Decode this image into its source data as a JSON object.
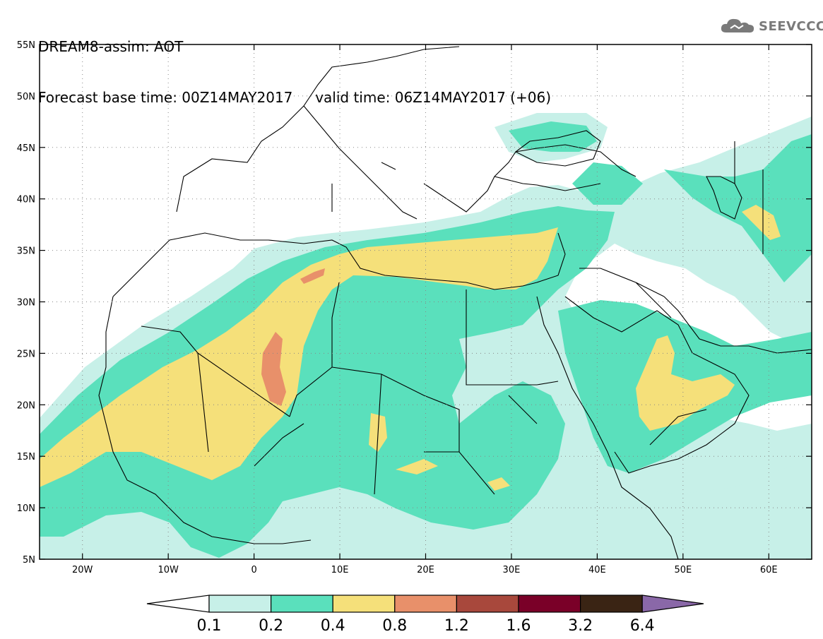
{
  "title": {
    "line1": "DREAM8-assim: AOT",
    "line2": "Forecast base time: 00Z14MAY2017     valid time: 06Z14MAY2017 (+06)"
  },
  "logo": {
    "text": "SEEVCCC",
    "icon": "cloud-icon",
    "color": "#7a7a7a"
  },
  "map": {
    "lon_range": [
      -25,
      65
    ],
    "lat_range": [
      5,
      55
    ],
    "lat_ticks": [
      {
        "v": 55,
        "label": "55N"
      },
      {
        "v": 50,
        "label": "50N"
      },
      {
        "v": 45,
        "label": "45N"
      },
      {
        "v": 40,
        "label": "40N"
      },
      {
        "v": 35,
        "label": "35N"
      },
      {
        "v": 30,
        "label": "30N"
      },
      {
        "v": 25,
        "label": "25N"
      },
      {
        "v": 20,
        "label": "20N"
      },
      {
        "v": 15,
        "label": "15N"
      },
      {
        "v": 10,
        "label": "10N"
      },
      {
        "v": 5,
        "label": "5N"
      }
    ],
    "lon_ticks": [
      {
        "v": -20,
        "label": "20W"
      },
      {
        "v": -10,
        "label": "10W"
      },
      {
        "v": 0,
        "label": "0"
      },
      {
        "v": 10,
        "label": "10E"
      },
      {
        "v": 20,
        "label": "20E"
      },
      {
        "v": 30,
        "label": "30E"
      },
      {
        "v": 40,
        "label": "40E"
      },
      {
        "v": 50,
        "label": "50E"
      },
      {
        "v": 60,
        "label": "60E"
      }
    ],
    "grid": "dotted"
  },
  "colorbar": {
    "labels": [
      "0.1",
      "0.2",
      "0.4",
      "0.8",
      "1.2",
      "1.6",
      "3.2",
      "6.4"
    ],
    "colors": [
      "#ffffff",
      "#c7f0e8",
      "#5ae0bc",
      "#f5e07a",
      "#e8906a",
      "#a8483c",
      "#7a0028",
      "#3a2414",
      "#8a68a8"
    ]
  },
  "colors": {
    "c01": "#c7f0e8",
    "c02": "#5ae0bc",
    "c04": "#f5e07a",
    "c08": "#e8906a"
  }
}
